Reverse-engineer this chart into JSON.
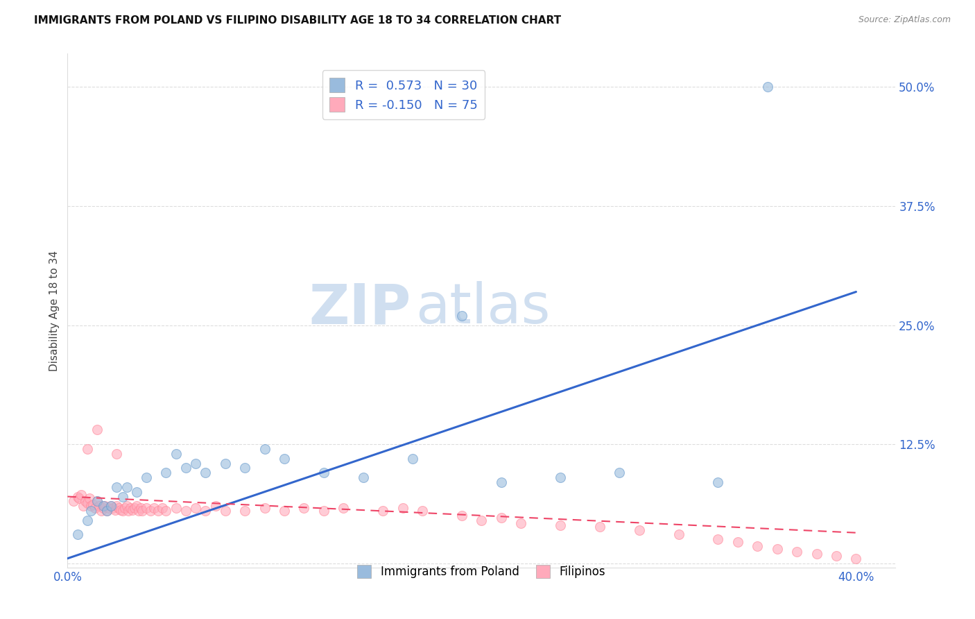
{
  "title": "IMMIGRANTS FROM POLAND VS FILIPINO DISABILITY AGE 18 TO 34 CORRELATION CHART",
  "source": "Source: ZipAtlas.com",
  "ylabel": "Disability Age 18 to 34",
  "xlim": [
    0.0,
    0.42
  ],
  "ylim": [
    -0.005,
    0.535
  ],
  "xticks": [
    0.0,
    0.1,
    0.2,
    0.3,
    0.4
  ],
  "xtick_labels": [
    "0.0%",
    "",
    "",
    "",
    "40.0%"
  ],
  "yticks": [
    0.0,
    0.125,
    0.25,
    0.375,
    0.5
  ],
  "ytick_labels": [
    "",
    "12.5%",
    "25.0%",
    "37.5%",
    "50.0%"
  ],
  "legend_labels": [
    "Immigrants from Poland",
    "Filipinos"
  ],
  "R_poland": "0.573",
  "N_poland": "30",
  "R_filipino": "-0.150",
  "N_filipino": "75",
  "scatter_poland_x": [
    0.005,
    0.01,
    0.012,
    0.015,
    0.018,
    0.02,
    0.022,
    0.025,
    0.028,
    0.03,
    0.035,
    0.04,
    0.05,
    0.055,
    0.06,
    0.065,
    0.07,
    0.08,
    0.09,
    0.1,
    0.11,
    0.13,
    0.15,
    0.175,
    0.2,
    0.22,
    0.25,
    0.28,
    0.33,
    0.355
  ],
  "scatter_poland_y": [
    0.03,
    0.045,
    0.055,
    0.065,
    0.06,
    0.055,
    0.06,
    0.08,
    0.07,
    0.08,
    0.075,
    0.09,
    0.095,
    0.115,
    0.1,
    0.105,
    0.095,
    0.105,
    0.1,
    0.12,
    0.11,
    0.095,
    0.09,
    0.11,
    0.26,
    0.085,
    0.09,
    0.095,
    0.085,
    0.5
  ],
  "scatter_filipino_x": [
    0.003,
    0.005,
    0.006,
    0.007,
    0.008,
    0.009,
    0.01,
    0.011,
    0.012,
    0.013,
    0.014,
    0.015,
    0.016,
    0.017,
    0.018,
    0.019,
    0.02,
    0.021,
    0.022,
    0.023,
    0.024,
    0.025,
    0.026,
    0.027,
    0.028,
    0.029,
    0.03,
    0.031,
    0.032,
    0.033,
    0.034,
    0.035,
    0.036,
    0.037,
    0.038,
    0.04,
    0.042,
    0.044,
    0.046,
    0.048,
    0.05,
    0.055,
    0.06,
    0.065,
    0.07,
    0.075,
    0.08,
    0.09,
    0.1,
    0.11,
    0.12,
    0.13,
    0.14,
    0.16,
    0.17,
    0.18,
    0.2,
    0.21,
    0.22,
    0.23,
    0.25,
    0.27,
    0.29,
    0.31,
    0.33,
    0.34,
    0.35,
    0.36,
    0.37,
    0.38,
    0.39,
    0.4,
    0.01,
    0.015,
    0.025
  ],
  "scatter_filipino_y": [
    0.065,
    0.07,
    0.068,
    0.072,
    0.06,
    0.065,
    0.063,
    0.068,
    0.06,
    0.062,
    0.058,
    0.065,
    0.06,
    0.055,
    0.058,
    0.06,
    0.055,
    0.058,
    0.06,
    0.058,
    0.056,
    0.06,
    0.058,
    0.056,
    0.055,
    0.058,
    0.06,
    0.055,
    0.058,
    0.056,
    0.058,
    0.06,
    0.055,
    0.058,
    0.055,
    0.058,
    0.055,
    0.058,
    0.055,
    0.058,
    0.055,
    0.058,
    0.055,
    0.058,
    0.055,
    0.06,
    0.055,
    0.055,
    0.058,
    0.055,
    0.058,
    0.055,
    0.058,
    0.055,
    0.058,
    0.055,
    0.05,
    0.045,
    0.048,
    0.042,
    0.04,
    0.038,
    0.035,
    0.03,
    0.025,
    0.022,
    0.018,
    0.015,
    0.012,
    0.01,
    0.008,
    0.005,
    0.12,
    0.14,
    0.115
  ],
  "poland_line_x": [
    0.0,
    0.4
  ],
  "poland_line_y": [
    0.005,
    0.285
  ],
  "filipino_line_x": [
    0.0,
    0.4
  ],
  "filipino_line_y": [
    0.07,
    0.032
  ],
  "poland_color": "#99BBDD",
  "polish_edge_color": "#6699CC",
  "filipino_color": "#FFAABB",
  "filipino_edge_color": "#FF8899",
  "poland_line_color": "#3366CC",
  "filipino_line_color": "#EE4466",
  "background_color": "#FFFFFF",
  "watermark_color": "#D0DFF0",
  "grid_color": "#DDDDDD",
  "tick_color": "#3366CC",
  "title_color": "#111111",
  "source_color": "#888888"
}
